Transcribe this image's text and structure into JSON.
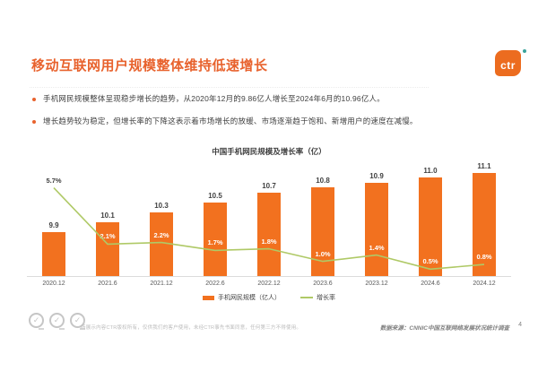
{
  "slide": {
    "title": "移动互联网用户规模整体维持低速增长",
    "page_number": "4"
  },
  "logo": {
    "text": "ctr"
  },
  "bullets": [
    {
      "text": "手机网民规模整体呈现稳步增长的趋势，从2020年12月的9.86亿人增长至2024年6月的10.96亿人。"
    },
    {
      "text": "增长趋势较为稳定，但增长率的下降这表示着市场增长的放缓、市场逐渐趋于饱和、新增用户的速度在减慢。"
    }
  ],
  "chart_data": {
    "type": "bar",
    "title": "中国手机网民规模及增长率（亿）",
    "categories": [
      "2020.12",
      "2021.6",
      "2021.12",
      "2022.6",
      "2022.12",
      "2023.6",
      "2023.12",
      "2024.6",
      "2024.12"
    ],
    "series": [
      {
        "name": "手机网民规模（亿人）",
        "type": "bar",
        "values": [
          9.9,
          10.1,
          10.3,
          10.5,
          10.7,
          10.8,
          10.9,
          11.0,
          11.1
        ]
      },
      {
        "name": "增长率",
        "type": "line",
        "values": [
          5.7,
          2.1,
          2.2,
          1.7,
          1.8,
          1.0,
          1.4,
          0.5,
          0.8
        ],
        "labels": [
          "5.7%",
          "2.1%",
          "2.2%",
          "1.7%",
          "1.8%",
          "1.0%",
          "1.4%",
          "0.5%",
          "0.8%"
        ]
      }
    ],
    "bar_axis_min": 9.0,
    "line_axis_range": [
      0,
      7.4
    ],
    "grid": false,
    "legend_position": "bottom"
  },
  "footer": {
    "disclaimer": "所展示内容CTR版权所有，仅供我们的客户使用，未经CTR事先书面同意，任何第三方不得使用。",
    "source": "数据来源：CNNIC中国互联网络发展状况统计调查"
  },
  "colors": {
    "accent_orange": "#E8622D",
    "bar_orange": "#F2711F",
    "line_green": "#AFC966",
    "text_dark": "#404040",
    "label_on_bar": "#FFFFFF"
  }
}
